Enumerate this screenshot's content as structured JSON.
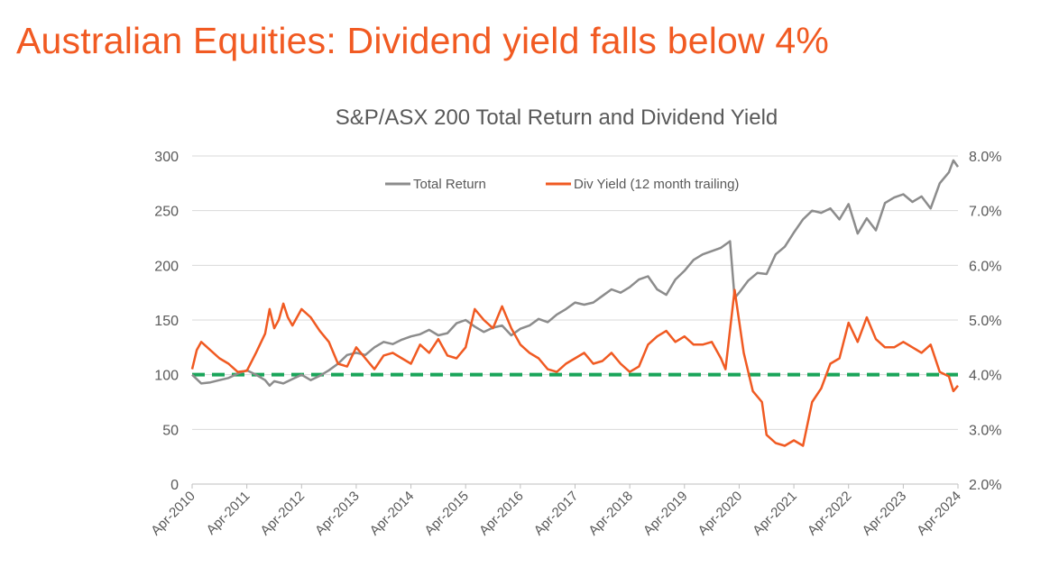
{
  "page": {
    "headline": "Australian Equities: Dividend yield falls below 4%"
  },
  "colors": {
    "headline": "#f15a22",
    "total_return": "#8c8c8c",
    "div_yield": "#f05a22",
    "threshold": "#1aa55a",
    "grid": "#d9d9d9",
    "axis_text": "#595959"
  },
  "chart_data": {
    "type": "line",
    "title": "S&P/ASX 200 Total Return and Dividend Yield",
    "xlabel": "",
    "ylabel": "",
    "y2label": "",
    "grid": true,
    "legend_position": "top",
    "x_tick_labels": [
      "Apr-2010",
      "Apr-2011",
      "Apr-2012",
      "Apr-2013",
      "Apr-2014",
      "Apr-2015",
      "Apr-2016",
      "Apr-2017",
      "Apr-2018",
      "Apr-2019",
      "Apr-2020",
      "Apr-2021",
      "Apr-2022",
      "Apr-2023",
      "Apr-2024"
    ],
    "x_range": [
      "Apr-2010",
      "Apr-2024"
    ],
    "y_left_range": [
      0,
      300
    ],
    "y_left_ticks": [
      "0",
      "50",
      "100",
      "150",
      "200",
      "250",
      "300"
    ],
    "y_right_range": [
      2.0,
      8.0
    ],
    "y_right_ticks": [
      "2.0%",
      "3.0%",
      "4.0%",
      "5.0%",
      "6.0%",
      "7.0%",
      "8.0%"
    ],
    "series": [
      {
        "name": "Total Return",
        "axis": "left",
        "points": [
          [
            "Apr-2010",
            100
          ],
          [
            "Jun-2010",
            92
          ],
          [
            "Aug-2010",
            93
          ],
          [
            "Oct-2010",
            95
          ],
          [
            "Dec-2010",
            97
          ],
          [
            "Feb-2011",
            101
          ],
          [
            "Apr-2011",
            104
          ],
          [
            "Jun-2011",
            100
          ],
          [
            "Aug-2011",
            95
          ],
          [
            "Sep-2011",
            90
          ],
          [
            "Oct-2011",
            94
          ],
          [
            "Dec-2011",
            92
          ],
          [
            "Feb-2012",
            96
          ],
          [
            "Apr-2012",
            100
          ],
          [
            "Jun-2012",
            95
          ],
          [
            "Aug-2012",
            99
          ],
          [
            "Oct-2012",
            104
          ],
          [
            "Dec-2012",
            110
          ],
          [
            "Feb-2013",
            118
          ],
          [
            "Apr-2013",
            120
          ],
          [
            "Jun-2013",
            118
          ],
          [
            "Aug-2013",
            125
          ],
          [
            "Oct-2013",
            130
          ],
          [
            "Dec-2013",
            128
          ],
          [
            "Feb-2014",
            132
          ],
          [
            "Apr-2014",
            135
          ],
          [
            "Jun-2014",
            137
          ],
          [
            "Aug-2014",
            141
          ],
          [
            "Oct-2014",
            136
          ],
          [
            "Dec-2014",
            138
          ],
          [
            "Feb-2015",
            147
          ],
          [
            "Apr-2015",
            150
          ],
          [
            "Jun-2015",
            144
          ],
          [
            "Aug-2015",
            139
          ],
          [
            "Oct-2015",
            143
          ],
          [
            "Dec-2015",
            145
          ],
          [
            "Feb-2016",
            136
          ],
          [
            "Apr-2016",
            142
          ],
          [
            "Jun-2016",
            145
          ],
          [
            "Aug-2016",
            151
          ],
          [
            "Oct-2016",
            148
          ],
          [
            "Dec-2016",
            155
          ],
          [
            "Feb-2017",
            160
          ],
          [
            "Apr-2017",
            166
          ],
          [
            "Jun-2017",
            164
          ],
          [
            "Aug-2017",
            166
          ],
          [
            "Oct-2017",
            172
          ],
          [
            "Dec-2017",
            178
          ],
          [
            "Feb-2018",
            175
          ],
          [
            "Apr-2018",
            180
          ],
          [
            "Jun-2018",
            187
          ],
          [
            "Aug-2018",
            190
          ],
          [
            "Oct-2018",
            178
          ],
          [
            "Dec-2018",
            173
          ],
          [
            "Feb-2019",
            187
          ],
          [
            "Apr-2019",
            195
          ],
          [
            "Jun-2019",
            205
          ],
          [
            "Aug-2019",
            210
          ],
          [
            "Oct-2019",
            213
          ],
          [
            "Dec-2019",
            216
          ],
          [
            "Feb-2020",
            222
          ],
          [
            "Mar-2020",
            170
          ],
          [
            "Apr-2020",
            175
          ],
          [
            "Jun-2020",
            186
          ],
          [
            "Aug-2020",
            193
          ],
          [
            "Oct-2020",
            192
          ],
          [
            "Dec-2020",
            210
          ],
          [
            "Feb-2021",
            217
          ],
          [
            "Apr-2021",
            230
          ],
          [
            "Jun-2021",
            242
          ],
          [
            "Aug-2021",
            250
          ],
          [
            "Oct-2021",
            248
          ],
          [
            "Dec-2021",
            252
          ],
          [
            "Feb-2022",
            242
          ],
          [
            "Apr-2022",
            256
          ],
          [
            "Jun-2022",
            229
          ],
          [
            "Aug-2022",
            243
          ],
          [
            "Oct-2022",
            232
          ],
          [
            "Dec-2022",
            257
          ],
          [
            "Feb-2023",
            262
          ],
          [
            "Apr-2023",
            265
          ],
          [
            "Jun-2023",
            258
          ],
          [
            "Aug-2023",
            263
          ],
          [
            "Oct-2023",
            252
          ],
          [
            "Dec-2023",
            275
          ],
          [
            "Feb-2024",
            285
          ],
          [
            "Mar-2024",
            296
          ],
          [
            "Apr-2024",
            290
          ]
        ]
      },
      {
        "name": "Div Yield (12 month trailing)",
        "axis": "right",
        "points": [
          [
            "Apr-2010",
            4.1
          ],
          [
            "May-2010",
            4.45
          ],
          [
            "Jun-2010",
            4.6
          ],
          [
            "Aug-2010",
            4.45
          ],
          [
            "Oct-2010",
            4.3
          ],
          [
            "Dec-2010",
            4.2
          ],
          [
            "Feb-2011",
            4.05
          ],
          [
            "Apr-2011",
            4.07
          ],
          [
            "Jun-2011",
            4.4
          ],
          [
            "Aug-2011",
            4.75
          ],
          [
            "Sep-2011",
            5.2
          ],
          [
            "Oct-2011",
            4.85
          ],
          [
            "Nov-2011",
            5.0
          ],
          [
            "Dec-2011",
            5.3
          ],
          [
            "Jan-2012",
            5.05
          ],
          [
            "Feb-2012",
            4.9
          ],
          [
            "Apr-2012",
            5.2
          ],
          [
            "Jun-2012",
            5.05
          ],
          [
            "Aug-2012",
            4.8
          ],
          [
            "Oct-2012",
            4.6
          ],
          [
            "Dec-2012",
            4.2
          ],
          [
            "Feb-2013",
            4.15
          ],
          [
            "Apr-2013",
            4.5
          ],
          [
            "Jun-2013",
            4.3
          ],
          [
            "Aug-2013",
            4.1
          ],
          [
            "Oct-2013",
            4.35
          ],
          [
            "Dec-2013",
            4.4
          ],
          [
            "Feb-2014",
            4.3
          ],
          [
            "Apr-2014",
            4.2
          ],
          [
            "Jun-2014",
            4.55
          ],
          [
            "Aug-2014",
            4.4
          ],
          [
            "Oct-2014",
            4.65
          ],
          [
            "Dec-2014",
            4.35
          ],
          [
            "Feb-2015",
            4.3
          ],
          [
            "Apr-2015",
            4.5
          ],
          [
            "Jun-2015",
            5.2
          ],
          [
            "Aug-2015",
            5.0
          ],
          [
            "Oct-2015",
            4.85
          ],
          [
            "Dec-2015",
            5.25
          ],
          [
            "Feb-2016",
            4.85
          ],
          [
            "Apr-2016",
            4.55
          ],
          [
            "Jun-2016",
            4.4
          ],
          [
            "Aug-2016",
            4.3
          ],
          [
            "Oct-2016",
            4.1
          ],
          [
            "Dec-2016",
            4.05
          ],
          [
            "Feb-2017",
            4.2
          ],
          [
            "Apr-2017",
            4.3
          ],
          [
            "Jun-2017",
            4.4
          ],
          [
            "Aug-2017",
            4.2
          ],
          [
            "Oct-2017",
            4.25
          ],
          [
            "Dec-2017",
            4.4
          ],
          [
            "Feb-2018",
            4.2
          ],
          [
            "Apr-2018",
            4.05
          ],
          [
            "Jun-2018",
            4.15
          ],
          [
            "Aug-2018",
            4.55
          ],
          [
            "Oct-2018",
            4.7
          ],
          [
            "Dec-2018",
            4.8
          ],
          [
            "Feb-2019",
            4.6
          ],
          [
            "Apr-2019",
            4.7
          ],
          [
            "Jun-2019",
            4.55
          ],
          [
            "Aug-2019",
            4.55
          ],
          [
            "Oct-2019",
            4.6
          ],
          [
            "Dec-2019",
            4.3
          ],
          [
            "Jan-2020",
            4.1
          ],
          [
            "Mar-2020",
            5.55
          ],
          [
            "May-2020",
            4.4
          ],
          [
            "Jul-2020",
            3.7
          ],
          [
            "Sep-2020",
            3.5
          ],
          [
            "Oct-2020",
            2.9
          ],
          [
            "Dec-2020",
            2.75
          ],
          [
            "Feb-2021",
            2.7
          ],
          [
            "Apr-2021",
            2.8
          ],
          [
            "Jun-2021",
            2.7
          ],
          [
            "Aug-2021",
            3.5
          ],
          [
            "Oct-2021",
            3.75
          ],
          [
            "Dec-2021",
            4.2
          ],
          [
            "Feb-2022",
            4.3
          ],
          [
            "Apr-2022",
            4.95
          ],
          [
            "Jun-2022",
            4.6
          ],
          [
            "Aug-2022",
            5.05
          ],
          [
            "Oct-2022",
            4.65
          ],
          [
            "Dec-2022",
            4.5
          ],
          [
            "Feb-2023",
            4.5
          ],
          [
            "Apr-2023",
            4.6
          ],
          [
            "Jun-2023",
            4.5
          ],
          [
            "Aug-2023",
            4.4
          ],
          [
            "Oct-2023",
            4.55
          ],
          [
            "Dec-2023",
            4.05
          ],
          [
            "Feb-2024",
            3.97
          ],
          [
            "Mar-2024",
            3.7
          ],
          [
            "Apr-2024",
            3.8
          ]
        ]
      }
    ],
    "reference_line": {
      "axis": "right",
      "value": 4.0,
      "style": "dashed"
    }
  }
}
